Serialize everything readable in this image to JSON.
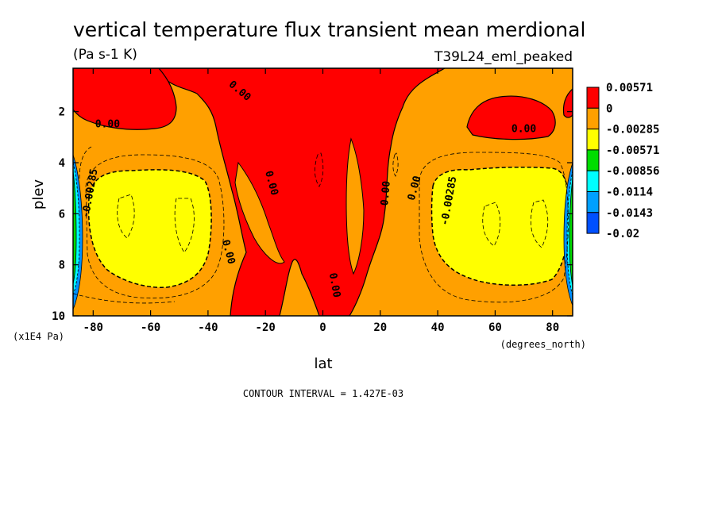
{
  "chart_data": {
    "type": "heatmap",
    "title": "vertical temperature flux transient mean merdional",
    "units": "(Pa s-1 K)",
    "run_label": "T39L24_eml_peaked",
    "xlabel": "lat",
    "ylabel": "plev",
    "x_units": "(degrees_north)",
    "y_units": "(x1E4 Pa)",
    "xlim": [
      -87,
      87
    ],
    "ylim": [
      10,
      0.3
    ],
    "x_ticks": [
      "-80",
      "-60",
      "-40",
      "-20",
      "0",
      "20",
      "40",
      "60",
      "80"
    ],
    "x_tick_values": [
      -80,
      -60,
      -40,
      -20,
      0,
      20,
      40,
      60,
      80
    ],
    "y_ticks": [
      "2",
      "4",
      "6",
      "8",
      "10"
    ],
    "y_tick_values": [
      2,
      4,
      6,
      8,
      10
    ],
    "colorbar": {
      "labels": [
        "0.00571",
        "0",
        "-0.00285",
        "-0.00571",
        "-0.00856",
        "-0.0114",
        "-0.0143",
        "-0.02"
      ],
      "colors": [
        "#ff0000",
        "#ffa000",
        "#ffff00",
        "#00dd00",
        "#00ffff",
        "#00a0ff",
        "#0050ff"
      ]
    },
    "contour_labels": [
      {
        "text": "0.00",
        "lat": -75,
        "plev": 2.5,
        "rot": 0
      },
      {
        "text": "0.00",
        "lat": -29,
        "plev": 1.2,
        "rot": 40
      },
      {
        "text": "0.00",
        "lat": -18,
        "plev": 4.8,
        "rot": 75
      },
      {
        "text": "0.00",
        "lat": -33,
        "plev": 7.5,
        "rot": 75
      },
      {
        "text": "0.00",
        "lat": 4,
        "plev": 8.8,
        "rot": 80
      },
      {
        "text": "0.00",
        "lat": 22,
        "plev": 5.2,
        "rot": -85
      },
      {
        "text": "0.00",
        "lat": 32,
        "plev": 5.0,
        "rot": -75
      },
      {
        "text": "0.00",
        "lat": 70,
        "plev": 2.7,
        "rot": 0
      },
      {
        "text": "-0.00285",
        "lat": -81,
        "plev": 5.2,
        "rot": -80
      },
      {
        "text": "-0.00285",
        "lat": 44,
        "plev": 5.5,
        "rot": -80
      }
    ],
    "contour_interval": "CONTOUR INTERVAL = 1.427E-03"
  }
}
